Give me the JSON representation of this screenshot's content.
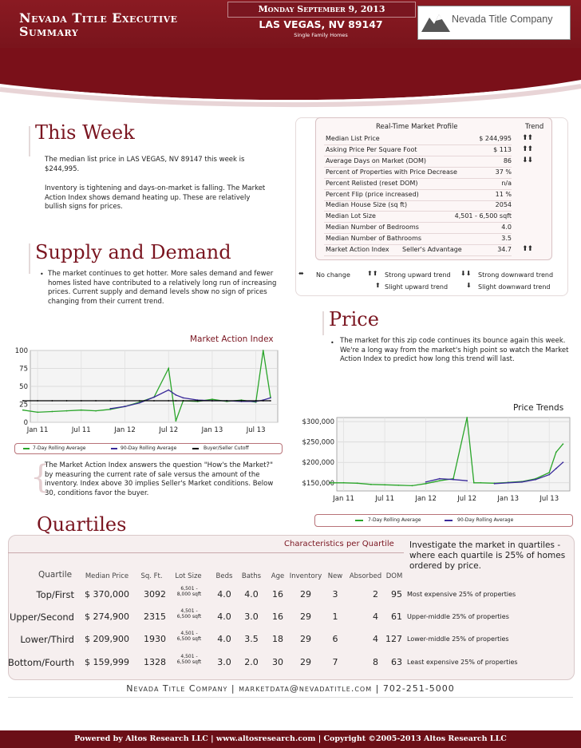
{
  "header": {
    "title": "Nevada Title Executive Summary",
    "date": "Monday September 9, 2013",
    "city": "LAS VEGAS, NV 89147",
    "subtitle": "Single Family Homes",
    "logo_text": "Nevada Title Company"
  },
  "this_week": {
    "heading": "This Week",
    "p1": "The median list price in LAS VEGAS, NV 89147 this week is $244,995.",
    "p2": "Inventory is tightening and days-on-market is falling. The Market Action Index shows demand heating up. These are relatively bullish signs for prices."
  },
  "profile": {
    "title": "Real-Time Market Profile",
    "trend_header": "Trend",
    "rows": [
      {
        "label": "Median List Price",
        "value": "$ 244,995",
        "trend": "strong-up"
      },
      {
        "label": "Asking Price Per Square Foot",
        "value": "$ 113",
        "trend": "strong-up"
      },
      {
        "label": "Average Days on Market (DOM)",
        "value": "86",
        "trend": "strong-down"
      },
      {
        "label": "Percent of Properties with Price Decrease",
        "value": "37 %",
        "trend": ""
      },
      {
        "label": "Percent Relisted (reset DOM)",
        "value": "n/a",
        "trend": ""
      },
      {
        "label": "Percent Flip (price increased)",
        "value": "11 %",
        "trend": ""
      },
      {
        "label": "Median House Size (sq ft)",
        "value": "2054",
        "trend": ""
      },
      {
        "label": "Median Lot Size",
        "value": "4,501 - 6,500 sqft",
        "trend": ""
      },
      {
        "label": "Median Number of Bedrooms",
        "value": "4.0",
        "trend": ""
      },
      {
        "label": "Median Number of Bathrooms",
        "value": "3.5",
        "trend": ""
      },
      {
        "label": "Market Action Index",
        "label2": "Seller's Advantage",
        "value": "34.7",
        "trend": "strong-up"
      }
    ]
  },
  "trend_legend": {
    "no_change": "No change",
    "strong_up": "Strong upward trend",
    "strong_down": "Strong downward trend",
    "slight_up": "Slight upward trend",
    "slight_down": "Slight downward trend"
  },
  "supply": {
    "heading": "Supply and Demand",
    "text": "The market continues to get hotter. More sales demand and fewer homes listed have contributed to a relatively long run of increasing prices. Current supply and demand levels show no sign of prices changing from their current trend."
  },
  "price": {
    "heading": "Price",
    "text": "The market for this zip code continues its bounce again this week. We're a long way from the market's high point so watch the Market Action Index to predict how long this trend will last."
  },
  "mai_note": "The Market Action Index answers the question \"How's the Market?\" by measuring the current rate of sale versus the amount of the inventory.  Index above 30 implies Seller's Market conditions. Below 30, conditions favor the buyer.",
  "chart_data": [
    {
      "type": "line",
      "title": "Market Action Index",
      "x_ticks": [
        "Jan 11",
        "Jul 11",
        "Jan 12",
        "Jul 12",
        "Jan 13",
        "Jul 13"
      ],
      "y_ticks": [
        "0",
        "25",
        "50",
        "75",
        "100"
      ],
      "ylim": [
        0,
        100
      ],
      "x_dates": [
        "2010-11",
        "2011-01",
        "2011-03",
        "2011-05",
        "2011-07",
        "2011-09",
        "2011-11",
        "2012-01",
        "2012-03",
        "2012-05",
        "2012-07",
        "2012-08",
        "2012-09",
        "2012-11",
        "2013-01",
        "2013-03",
        "2013-05",
        "2013-07",
        "2013-08",
        "2013-09"
      ],
      "series": [
        {
          "name": "7-Day Rolling Average",
          "color": "#2aa52a",
          "values": [
            17,
            14,
            15,
            16,
            17,
            16,
            18,
            22,
            28,
            35,
            75,
            2,
            30,
            29,
            32,
            29,
            31,
            28,
            100,
            35
          ]
        },
        {
          "name": "90-Day Rolling Average",
          "color": "#3a2a9a",
          "values": [
            null,
            null,
            null,
            null,
            null,
            null,
            19,
            22,
            27,
            35,
            45,
            38,
            34,
            31,
            30,
            30,
            29,
            29,
            31,
            34
          ]
        },
        {
          "name": "Buyer/Seller Cutoff",
          "color": "#000000",
          "values": [
            30,
            30,
            30,
            30,
            30,
            30,
            30,
            30,
            30,
            30,
            30,
            30,
            30,
            30,
            30,
            30,
            30,
            30,
            30,
            30
          ]
        }
      ],
      "legend": [
        "7-Day Rolling Average",
        "90-Day Rolling Average",
        "Buyer/Seller Cutoff"
      ]
    },
    {
      "type": "line",
      "title": "Price Trends",
      "x_ticks": [
        "Jan 11",
        "Jul 11",
        "Jan 12",
        "Jul 12",
        "Jan 13",
        "Jul 13"
      ],
      "y_ticks": [
        "$150,000",
        "$200,000",
        "$250,000",
        "$300,000"
      ],
      "ylim": [
        130000,
        310000
      ],
      "x_dates": [
        "2010-11",
        "2011-01",
        "2011-03",
        "2011-05",
        "2011-07",
        "2011-09",
        "2011-11",
        "2012-01",
        "2012-03",
        "2012-05",
        "2012-07",
        "2012-08",
        "2012-09",
        "2012-11",
        "2013-01",
        "2013-03",
        "2013-05",
        "2013-07",
        "2013-08",
        "2013-09"
      ],
      "series": [
        {
          "name": "7-Day Rolling Average",
          "color": "#2aa52a",
          "values": [
            150000,
            150000,
            149000,
            146000,
            145000,
            144000,
            143000,
            148000,
            155000,
            160000,
            310000,
            150000,
            150000,
            149000,
            151000,
            153000,
            160000,
            175000,
            225000,
            245000
          ]
        },
        {
          "name": "90-Day Rolling Average",
          "color": "#3a2a9a",
          "values": [
            null,
            null,
            null,
            null,
            null,
            null,
            null,
            152000,
            160000,
            158000,
            155000,
            null,
            null,
            148000,
            150000,
            152000,
            158000,
            170000,
            185000,
            200000
          ]
        }
      ],
      "legend": [
        "7-Day Rolling Average",
        "90-Day Rolling Average"
      ]
    }
  ],
  "quartiles": {
    "heading": "Quartiles",
    "chars_title": "Characteristics per Quartile",
    "intro": "Investigate the market in quartiles - where each quartile is 25% of homes ordered by price.",
    "headers": [
      "Quartile",
      "Median Price",
      "Sq. Ft.",
      "Lot Size",
      "Beds",
      "Baths",
      "Age",
      "Inventory",
      "New",
      "Absorbed",
      "DOM"
    ],
    "rows": [
      {
        "q": "Top/First",
        "price": "$ 370,000",
        "sqft": "3092",
        "lot1": "6,501 -",
        "lot2": "8,000 sqft",
        "beds": "4.0",
        "baths": "4.0",
        "age": "16",
        "inv": "29",
        "new": "3",
        "abs": "2",
        "dom": "95",
        "desc": "Most expensive 25% of properties"
      },
      {
        "q": "Upper/Second",
        "price": "$ 274,900",
        "sqft": "2315",
        "lot1": "4,501 -",
        "lot2": "6,500 sqft",
        "beds": "4.0",
        "baths": "3.0",
        "age": "16",
        "inv": "29",
        "new": "1",
        "abs": "4",
        "dom": "61",
        "desc": "Upper-middle 25% of properties"
      },
      {
        "q": "Lower/Third",
        "price": "$ 209,900",
        "sqft": "1930",
        "lot1": "4,501 -",
        "lot2": "6,500 sqft",
        "beds": "4.0",
        "baths": "3.5",
        "age": "18",
        "inv": "29",
        "new": "6",
        "abs": "4",
        "dom": "127",
        "desc": "Lower-middle 25% of properties"
      },
      {
        "q": "Bottom/Fourth",
        "price": "$ 159,999",
        "sqft": "1328",
        "lot1": "4,501 -",
        "lot2": "6,500 sqft",
        "beds": "3.0",
        "baths": "2.0",
        "age": "30",
        "inv": "29",
        "new": "7",
        "abs": "8",
        "dom": "63",
        "desc": "Least expensive 25% of properties"
      }
    ]
  },
  "footer": {
    "contact": "Nevada Title Company | marketdata@nevadatitle.com | 702-251-5000",
    "powered": "Powered by Altos Research LLC | www.altosresearch.com | Copyright ©2005-2013 Altos Research LLC"
  }
}
